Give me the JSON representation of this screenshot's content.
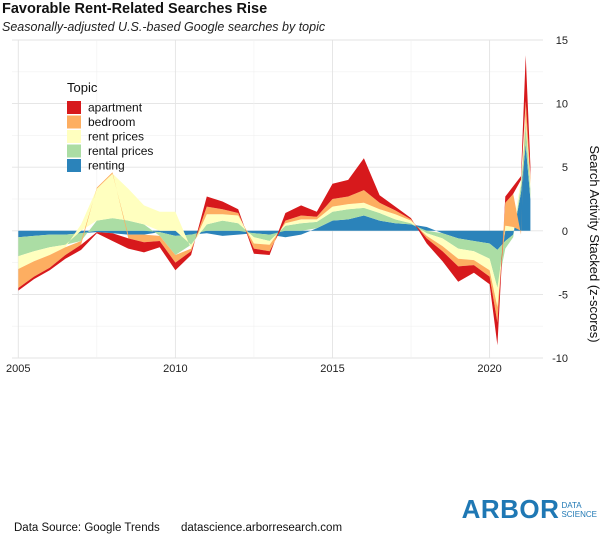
{
  "header": {
    "title": "Favorable Rent-Related Searches Rise",
    "subtitle": "Seasonally-adjusted U.S.-based Google searches by topic"
  },
  "footer": {
    "source": "Data Source: Google Trends",
    "url": "datascience.arborresearch.com"
  },
  "brand": {
    "name": "ARBOR",
    "sub_line1": "DATA",
    "sub_line2": "SCIENCE"
  },
  "chart_data": {
    "type": "area",
    "stacked": true,
    "title": "Favorable Rent-Related Searches Rise",
    "subtitle": "Seasonally-adjusted U.S.-based Google searches by topic",
    "xlabel": "",
    "ylabel": "Search Activity Stacked (z-scores)",
    "xlim": [
      2004.8,
      2021.7
    ],
    "ylim": [
      -10,
      15
    ],
    "x_ticks": [
      2005,
      2010,
      2015,
      2020
    ],
    "y_ticks": [
      -10,
      -5,
      0,
      5,
      10,
      15
    ],
    "y_axis_side": "right",
    "grid": true,
    "legend": {
      "title": "Topic",
      "position": "top-left"
    },
    "x": [
      2005.0,
      2005.5,
      2006.0,
      2006.5,
      2007.0,
      2007.5,
      2008.0,
      2008.5,
      2009.0,
      2009.5,
      2010.0,
      2010.5,
      2011.0,
      2011.5,
      2012.0,
      2012.5,
      2013.0,
      2013.5,
      2014.0,
      2014.5,
      2015.0,
      2015.5,
      2016.0,
      2016.5,
      2017.0,
      2017.5,
      2018.0,
      2018.5,
      2019.0,
      2019.5,
      2020.0,
      2020.25,
      2020.5,
      2020.75,
      2021.0,
      2021.15,
      2021.3
    ],
    "series": [
      {
        "name": "renting",
        "color": "#2b83ba",
        "values": [
          -0.5,
          -0.4,
          -0.3,
          -0.3,
          -0.2,
          -0.1,
          -0.2,
          -0.3,
          -0.3,
          -0.1,
          -0.4,
          -0.3,
          -0.2,
          -0.4,
          -0.3,
          -0.2,
          -0.3,
          -0.5,
          -0.3,
          0.2,
          0.8,
          0.9,
          1.2,
          0.8,
          0.6,
          0.5,
          0.3,
          -0.2,
          -0.6,
          -0.8,
          -1.0,
          -1.5,
          -0.8,
          -0.3,
          3.0,
          6.8,
          2.5
        ]
      },
      {
        "name": "rental prices",
        "color": "#abdda4",
        "values": [
          -1.5,
          -1.2,
          -1.0,
          -0.8,
          -0.6,
          0.8,
          1.0,
          0.8,
          0.5,
          -0.3,
          -1.5,
          -0.8,
          0.5,
          0.8,
          0.6,
          -0.3,
          -0.5,
          0.4,
          0.6,
          0.5,
          0.7,
          0.8,
          0.6,
          0.6,
          0.3,
          0.1,
          -0.2,
          -0.4,
          -0.8,
          -0.8,
          -1.2,
          -3.0,
          -0.6,
          -0.2,
          0.6,
          1.6,
          0.8
        ]
      },
      {
        "name": "rent prices",
        "color": "#ffffbf",
        "values": [
          -1.0,
          -0.8,
          -0.6,
          -0.2,
          0.5,
          2.5,
          3.5,
          2.5,
          1.5,
          1.5,
          1.5,
          -0.3,
          0.8,
          0.5,
          0.6,
          -0.5,
          -0.3,
          0.2,
          0.3,
          0.2,
          0.4,
          0.4,
          0.4,
          0.3,
          0.4,
          0.2,
          -0.2,
          -0.6,
          -0.8,
          -0.7,
          -0.9,
          -1.5,
          0.4,
          0.3,
          0.4,
          0.6,
          0.4
        ]
      },
      {
        "name": "bedroom",
        "color": "#fdae61",
        "values": [
          -1.5,
          -1.2,
          -1.0,
          -0.6,
          -0.3,
          0.1,
          0.1,
          -0.3,
          -0.6,
          -0.4,
          -0.6,
          -0.2,
          0.6,
          0.4,
          0.2,
          -0.4,
          -0.5,
          0.2,
          0.3,
          0.2,
          0.6,
          0.6,
          1.0,
          0.5,
          0.3,
          0.1,
          -0.2,
          -0.4,
          -0.6,
          -0.4,
          -0.5,
          -1.2,
          1.8,
          2.6,
          -0.3,
          1.2,
          0.6
        ]
      },
      {
        "name": "apartment",
        "color": "#d7191c",
        "values": [
          -0.2,
          -0.2,
          -0.2,
          -0.3,
          -0.4,
          -0.1,
          -0.6,
          -0.8,
          -0.8,
          -0.5,
          -0.6,
          -0.3,
          0.8,
          0.6,
          0.3,
          -0.4,
          -0.3,
          0.6,
          0.8,
          0.4,
          1.2,
          1.3,
          2.5,
          0.6,
          0.3,
          0.1,
          -0.4,
          -0.8,
          -1.2,
          -0.6,
          -0.6,
          -1.8,
          0.5,
          0.6,
          0.3,
          3.6,
          0.8
        ]
      }
    ]
  }
}
